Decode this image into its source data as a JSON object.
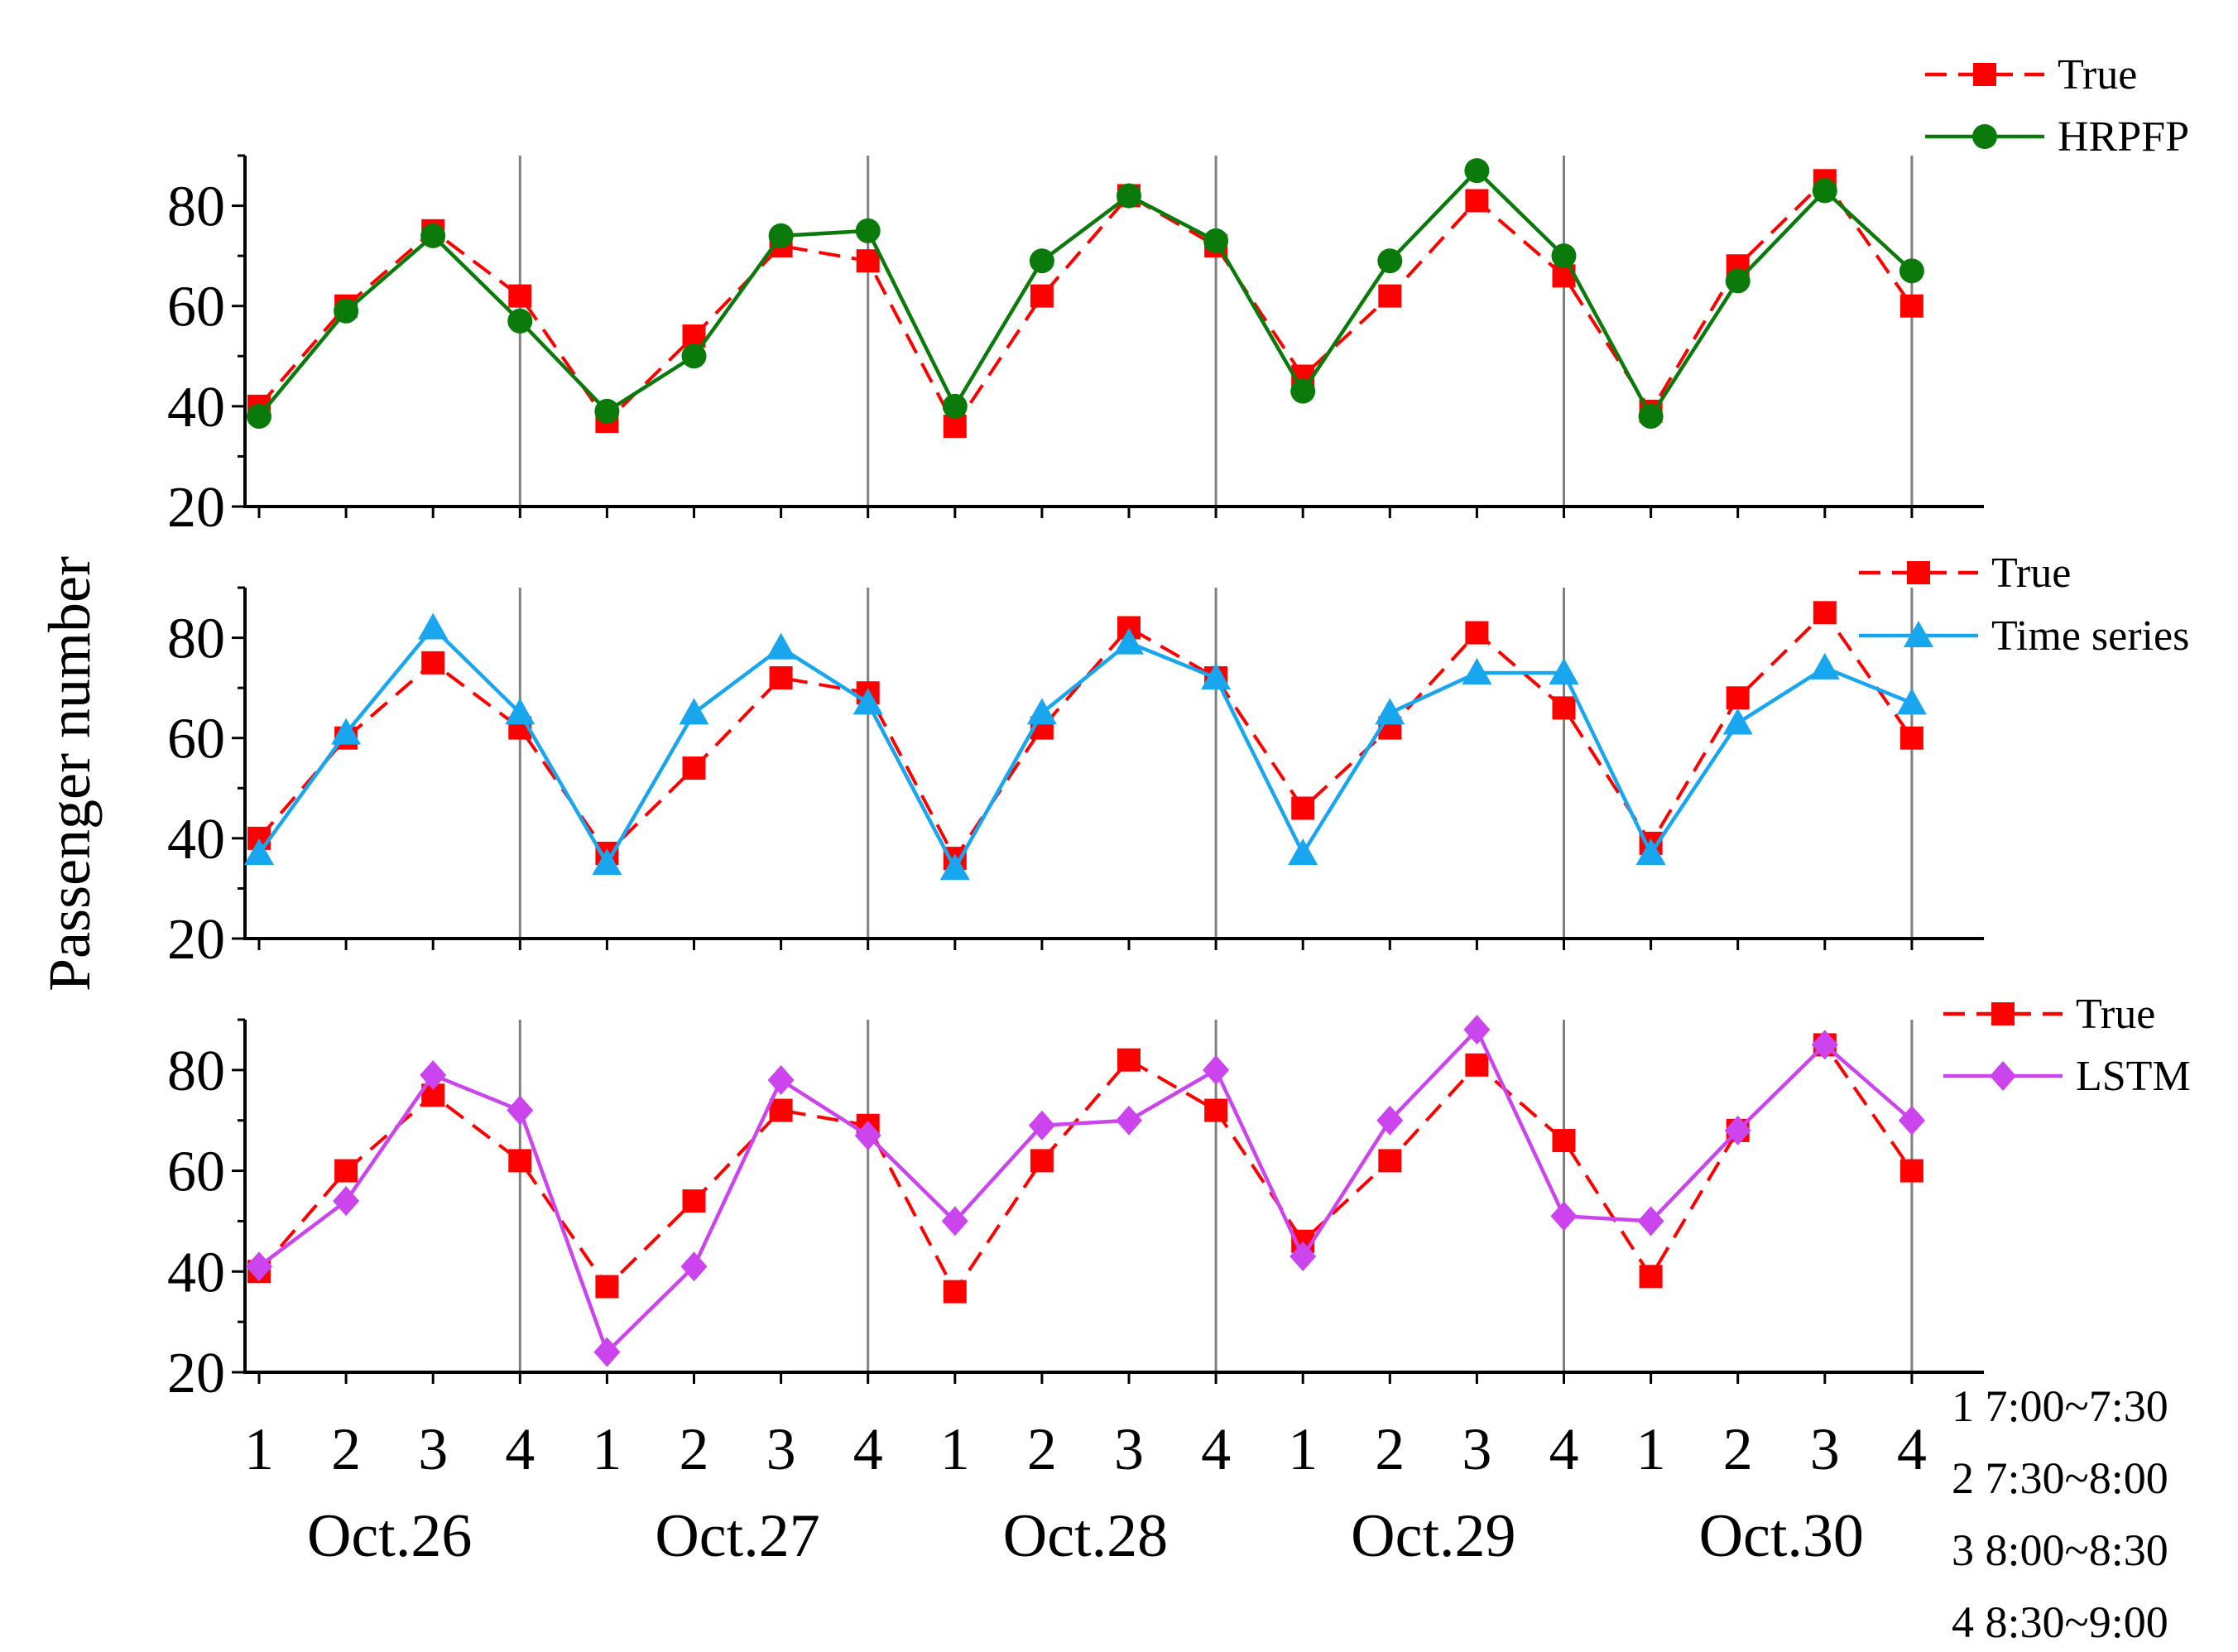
{
  "ylabel": "Passenger number",
  "day_labels": [
    "Oct.26",
    "Oct.27",
    "Oct.28",
    "Oct.29",
    "Oct.30"
  ],
  "slot_labels": [
    "1",
    "2",
    "3",
    "4"
  ],
  "slot_key": [
    "1 7:00~7:30",
    "2 7:30~8:00",
    "3 8:00~8:30",
    "4 8:30~9:00"
  ],
  "colors": {
    "true": "#ff0000",
    "hrpfp": "#0a7a0a",
    "time_series": "#18a6ee",
    "lstm": "#cc44ee",
    "axis": "#000000",
    "separator": "#808080"
  },
  "chart_data": [
    {
      "type": "line",
      "panel": "top",
      "x": [
        1,
        2,
        3,
        4,
        5,
        6,
        7,
        8,
        9,
        10,
        11,
        12,
        13,
        14,
        15,
        16,
        17,
        18,
        19,
        20
      ],
      "ylim": [
        20,
        90
      ],
      "yticks": [
        20,
        40,
        60,
        80
      ],
      "series": [
        {
          "name": "True",
          "marker": "square",
          "style": "dashed",
          "color_key": "true",
          "values": [
            40,
            60,
            75,
            62,
            37,
            54,
            72,
            69,
            36,
            62,
            82,
            72,
            46,
            62,
            81,
            66,
            39,
            68,
            85,
            60
          ]
        },
        {
          "name": "HRPFP",
          "marker": "circle",
          "style": "solid",
          "color_key": "hrpfp",
          "values": [
            38,
            59,
            74,
            57,
            39,
            50,
            74,
            75,
            40,
            69,
            82,
            73,
            43,
            69,
            87,
            70,
            38,
            65,
            83,
            67
          ]
        }
      ]
    },
    {
      "type": "line",
      "panel": "middle",
      "x": [
        1,
        2,
        3,
        4,
        5,
        6,
        7,
        8,
        9,
        10,
        11,
        12,
        13,
        14,
        15,
        16,
        17,
        18,
        19,
        20
      ],
      "ylim": [
        20,
        90
      ],
      "yticks": [
        20,
        40,
        60,
        80
      ],
      "series": [
        {
          "name": "True",
          "marker": "square",
          "style": "dashed",
          "color_key": "true",
          "values": [
            40,
            60,
            75,
            62,
            37,
            54,
            72,
            69,
            36,
            62,
            82,
            72,
            46,
            62,
            81,
            66,
            39,
            68,
            85,
            60
          ]
        },
        {
          "name": "Time series",
          "marker": "triangle",
          "style": "solid",
          "color_key": "time_series",
          "values": [
            37,
            61,
            82,
            65,
            35,
            65,
            78,
            67,
            34,
            65,
            79,
            72,
            37,
            65,
            73,
            73,
            37,
            63,
            74,
            67
          ]
        }
      ]
    },
    {
      "type": "line",
      "panel": "bottom",
      "x": [
        1,
        2,
        3,
        4,
        5,
        6,
        7,
        8,
        9,
        10,
        11,
        12,
        13,
        14,
        15,
        16,
        17,
        18,
        19,
        20
      ],
      "ylim": [
        20,
        90
      ],
      "yticks": [
        20,
        40,
        60,
        80
      ],
      "series": [
        {
          "name": "True",
          "marker": "square",
          "style": "dashed",
          "color_key": "true",
          "values": [
            40,
            60,
            75,
            62,
            37,
            54,
            72,
            69,
            36,
            62,
            82,
            72,
            46,
            62,
            81,
            66,
            39,
            68,
            85,
            60
          ]
        },
        {
          "name": "LSTM",
          "marker": "diamond",
          "style": "solid",
          "color_key": "lstm",
          "values": [
            41,
            54,
            79,
            72,
            24,
            41,
            78,
            67,
            50,
            69,
            70,
            80,
            43,
            70,
            88,
            51,
            50,
            68,
            85,
            70
          ]
        }
      ]
    }
  ]
}
